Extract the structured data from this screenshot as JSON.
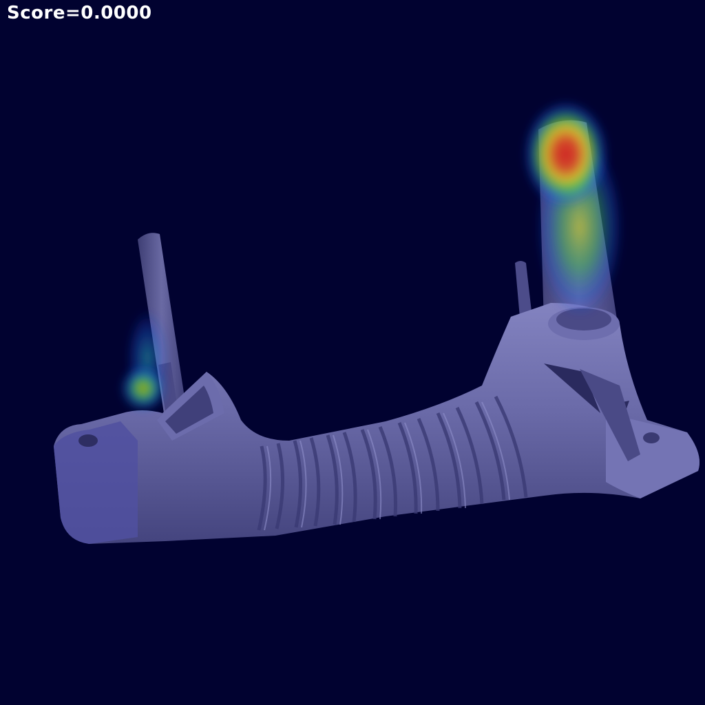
{
  "overlay": {
    "score_text": "Score=0.0000"
  },
  "colors": {
    "background": "#010230",
    "part_body": "#5a5a98",
    "part_shadow": "#3c3c74",
    "part_highlight": "#8c8cc8",
    "heat_hot": "#d21e1e",
    "heat_warm": "#e6d21e",
    "heat_mid": "#32c832",
    "heat_cool": "#1e5adc"
  },
  "image": {
    "subject": "metal-bracket-part",
    "overlay_type": "anomaly-heatmap"
  }
}
